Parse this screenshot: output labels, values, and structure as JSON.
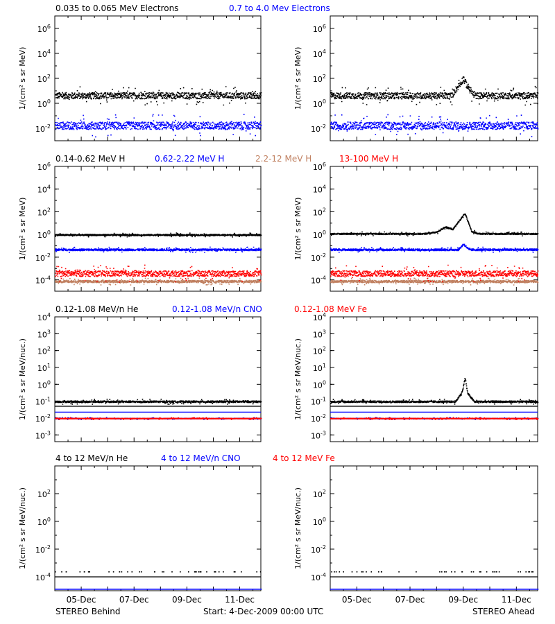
{
  "footer": {
    "left": "STEREO Behind",
    "center": "Start:  4-Dec-2009 00:00 UTC",
    "right": "STEREO Ahead"
  },
  "x_ticks": [
    "05-Dec",
    "07-Dec",
    "09-Dec",
    "11-Dec"
  ],
  "colors": {
    "black": "#000000",
    "blue": "#0000ff",
    "tan": "#c08060",
    "red": "#ff0000"
  },
  "chart_data": [
    {
      "type": "scatter",
      "title": "",
      "legend": [
        {
          "label": "0.035 to 0.065 MeV Electrons",
          "color": "#000000"
        },
        {
          "label": "0.7 to 4.0 Mev Electrons",
          "color": "#0000ff"
        }
      ],
      "ylabel": "1/(cm² s sr MeV)",
      "yscale": "log",
      "ylim_exp": [
        -3,
        7
      ],
      "y_ticks": [
        {
          "exp": -2,
          "base": "10",
          "sup": "-2"
        },
        {
          "exp": 0,
          "base": "10",
          "sup": "0"
        },
        {
          "exp": 2,
          "base": "10",
          "sup": "2"
        },
        {
          "exp": 4,
          "base": "10",
          "sup": "4"
        },
        {
          "exp": 6,
          "base": "10",
          "sup": "6"
        }
      ],
      "panels": {
        "behind": {
          "series": [
            {
              "color": "#000000",
              "level_exp": 0.65,
              "noise": 0.25,
              "profile": []
            },
            {
              "color": "#0000ff",
              "level_exp": -1.75,
              "noise": 0.3,
              "profile": []
            }
          ]
        },
        "ahead": {
          "series": [
            {
              "color": "#000000",
              "level_exp": 0.65,
              "noise": 0.25,
              "profile": [
                [
                  4.6,
                  0.2
                ],
                [
                  4.85,
                  0.9
                ],
                [
                  5.0,
                  1.4
                ],
                [
                  5.1,
                  0.9
                ],
                [
                  5.4,
                  0.0
                ]
              ]
            },
            {
              "color": "#0000ff",
              "level_exp": -1.75,
              "noise": 0.3,
              "profile": []
            }
          ]
        }
      }
    },
    {
      "type": "scatter",
      "title": "",
      "legend": [
        {
          "label": "0.14-0.62 MeV H",
          "color": "#000000"
        },
        {
          "label": "0.62-2.22 MeV H",
          "color": "#0000ff"
        },
        {
          "label": "2.2-12 MeV H",
          "color": "#c08060"
        },
        {
          "label": "13-100 MeV H",
          "color": "#ff0000"
        }
      ],
      "ylabel": "1/(cm² s sr MeV)",
      "yscale": "log",
      "ylim_exp": [
        -5,
        6
      ],
      "y_ticks": [
        {
          "exp": -4,
          "base": "10",
          "sup": "-4"
        },
        {
          "exp": -2,
          "base": "10",
          "sup": "-2"
        },
        {
          "exp": 0,
          "base": "10",
          "sup": "0"
        },
        {
          "exp": 2,
          "base": "10",
          "sup": "2"
        },
        {
          "exp": 4,
          "base": "10",
          "sup": "4"
        },
        {
          "exp": 6,
          "base": "10",
          "sup": "6"
        }
      ],
      "panels": {
        "behind": {
          "series": [
            {
              "color": "#000000",
              "level_exp": 0.0,
              "noise": 0.06,
              "profile": []
            },
            {
              "color": "#0000ff",
              "level_exp": -1.3,
              "noise": 0.08,
              "profile": []
            },
            {
              "color": "#c08060",
              "level_exp": -4.1,
              "noise": 0.1,
              "profile": []
            },
            {
              "color": "#ff0000",
              "level_exp": -3.4,
              "noise": 0.25,
              "profile": []
            }
          ]
        },
        "ahead": {
          "series": [
            {
              "color": "#000000",
              "level_exp": 0.1,
              "noise": 0.06,
              "profile": [
                [
                  3.5,
                  0.0
                ],
                [
                  4.0,
                  0.15
                ],
                [
                  4.3,
                  0.6
                ],
                [
                  4.6,
                  0.4
                ],
                [
                  4.85,
                  1.2
                ],
                [
                  5.05,
                  1.8
                ],
                [
                  5.3,
                  0.2
                ],
                [
                  5.6,
                  0.0
                ]
              ]
            },
            {
              "color": "#0000ff",
              "level_exp": -1.3,
              "noise": 0.08,
              "profile": [
                [
                  4.8,
                  0.0
                ],
                [
                  5.0,
                  0.5
                ],
                [
                  5.2,
                  0.0
                ]
              ]
            },
            {
              "color": "#c08060",
              "level_exp": -4.1,
              "noise": 0.1,
              "profile": []
            },
            {
              "color": "#ff0000",
              "level_exp": -3.4,
              "noise": 0.25,
              "profile": []
            }
          ]
        }
      }
    },
    {
      "type": "scatter",
      "title": "",
      "legend": [
        {
          "label": "0.12-1.08 MeV/n He",
          "color": "#000000"
        },
        {
          "label": "0.12-1.08 MeV/n CNO",
          "color": "#0000ff"
        },
        {
          "label": "0.12-1.08 MeV Fe",
          "color": "#ff0000"
        }
      ],
      "ylabel": "1/(cm² s sr MeV/nuc.)",
      "yscale": "log",
      "ylim_exp": [
        -3.4,
        4
      ],
      "y_ticks": [
        {
          "exp": -3,
          "base": "10",
          "sup": "-3"
        },
        {
          "exp": -2,
          "base": "10",
          "sup": "-2"
        },
        {
          "exp": -1,
          "base": "10",
          "sup": "-1"
        },
        {
          "exp": 0,
          "base": "10",
          "sup": "0"
        },
        {
          "exp": 1,
          "base": "10",
          "sup": "1"
        },
        {
          "exp": 2,
          "base": "10",
          "sup": "2"
        },
        {
          "exp": 3,
          "base": "10",
          "sup": "3"
        },
        {
          "exp": 4,
          "base": "10",
          "sup": "4"
        }
      ],
      "panels": {
        "behind": {
          "series": [
            {
              "color": "#000000",
              "level_exp": -1.0,
              "noise": 0.05,
              "profile": [],
              "line_exp": -1.3
            },
            {
              "color": "#0000ff",
              "level_exp": -2.0,
              "noise": 0.02,
              "profile": [],
              "line_exp": -1.65
            },
            {
              "color": "#ff0000",
              "level_exp": -2.0,
              "noise": 0.02,
              "profile": []
            }
          ]
        },
        "ahead": {
          "series": [
            {
              "color": "#000000",
              "level_exp": -1.0,
              "noise": 0.05,
              "profile": [
                [
                  4.7,
                  0.0
                ],
                [
                  4.95,
                  0.6
                ],
                [
                  5.05,
                  1.4
                ],
                [
                  5.15,
                  0.5
                ],
                [
                  5.4,
                  0.0
                ]
              ],
              "line_exp": -1.3
            },
            {
              "color": "#0000ff",
              "level_exp": -2.0,
              "noise": 0.02,
              "profile": [],
              "line_exp": -1.65
            },
            {
              "color": "#ff0000",
              "level_exp": -2.0,
              "noise": 0.02,
              "profile": []
            }
          ]
        }
      }
    },
    {
      "type": "scatter",
      "title": "",
      "legend": [
        {
          "label": "4 to 12 MeV/n He",
          "color": "#000000"
        },
        {
          "label": "4 to 12 MeV/n CNO",
          "color": "#0000ff"
        },
        {
          "label": "4 to 12 MeV Fe",
          "color": "#ff0000"
        }
      ],
      "ylabel": "1/(cm² s sr MeV/nuc.)",
      "yscale": "log",
      "ylim_exp": [
        -5,
        4
      ],
      "y_ticks": [
        {
          "exp": -4,
          "base": "10",
          "sup": "-4"
        },
        {
          "exp": -2,
          "base": "10",
          "sup": "-2"
        },
        {
          "exp": 0,
          "base": "10",
          "sup": "0"
        },
        {
          "exp": 2,
          "base": "10",
          "sup": "2"
        }
      ],
      "panels": {
        "behind": {
          "series": [
            {
              "color": "#000000",
              "level_exp": -3.6,
              "noise": 0.0,
              "profile": [],
              "sparse": true,
              "line_exp": -4.0
            },
            {
              "color": "#0000ff",
              "level_exp": -4.85,
              "noise": 0.0,
              "profile": []
            }
          ]
        },
        "ahead": {
          "series": [
            {
              "color": "#000000",
              "level_exp": -3.6,
              "noise": 0.0,
              "profile": [],
              "sparse": true,
              "line_exp": -4.0
            },
            {
              "color": "#0000ff",
              "level_exp": -4.85,
              "noise": 0.0,
              "profile": []
            }
          ]
        }
      }
    }
  ]
}
